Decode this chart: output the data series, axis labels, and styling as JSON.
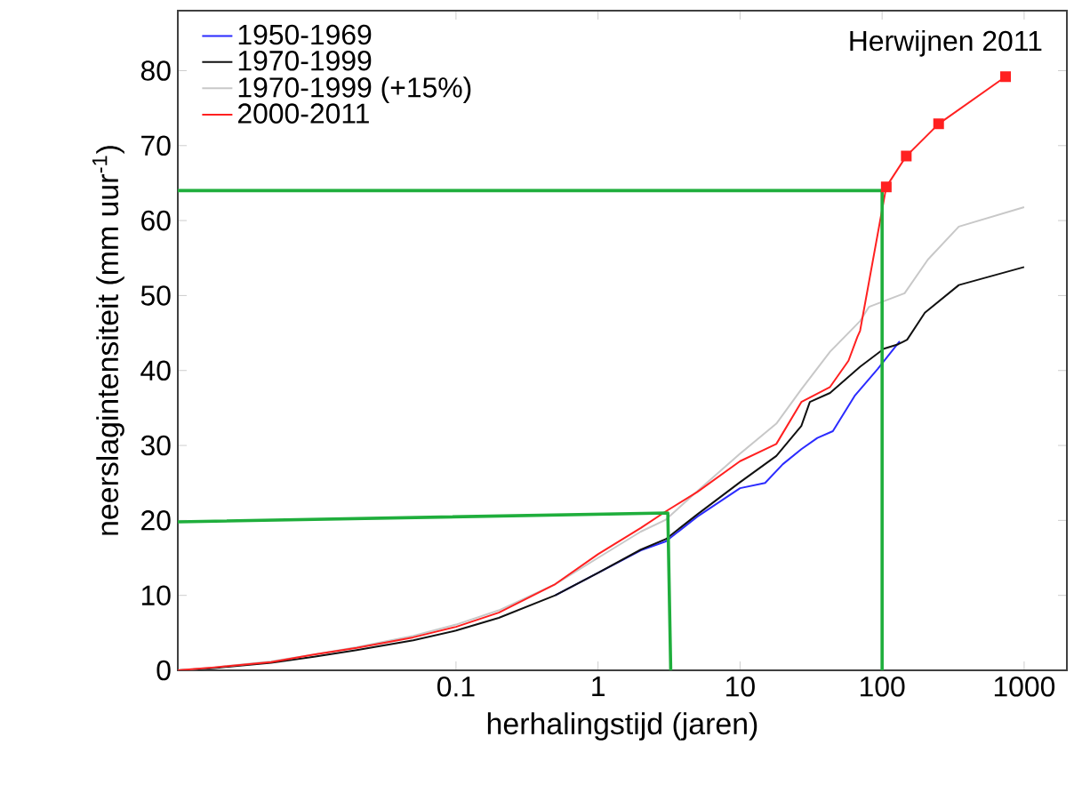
{
  "chart_data": {
    "type": "line",
    "title": "Herwijnen 2011",
    "xlabel": "herhalingstijd (jaren)",
    "ylabel": "neerslagintensiteit (mm uur$^{-1}$)",
    "log": "x",
    "legend": "top left",
    "xlim": [
      0.0011,
      2000
    ],
    "ylim": [
      0,
      88
    ],
    "xticks": [
      0.1,
      1,
      10,
      100,
      1000
    ],
    "yticks": [
      0,
      10,
      20,
      30,
      40,
      50,
      60,
      70,
      80
    ],
    "series": [
      {
        "name": "1950-1969",
        "color": "#2b2bff",
        "x": [
          0.5,
          1,
          2,
          3,
          5,
          10,
          15,
          20,
          27,
          35,
          45,
          64,
          93,
          133
        ],
        "values": [
          10.0,
          13.0,
          16.0,
          17.2,
          20.5,
          24.3,
          25.0,
          27.5,
          29.5,
          31.0,
          31.9,
          36.6,
          40.2,
          43.9
        ]
      },
      {
        "name": "1970-1999",
        "color": "#111111",
        "x": [
          0.0011,
          0.002,
          0.005,
          0.01,
          0.02,
          0.05,
          0.1,
          0.2,
          0.5,
          1,
          2,
          3,
          5,
          10,
          18,
          27,
          31,
          43,
          70,
          103,
          130,
          150,
          200,
          347,
          1000
        ],
        "values": [
          0,
          0.3,
          1.0,
          1.8,
          2.7,
          4.0,
          5.3,
          7.0,
          10.0,
          13.0,
          16.1,
          17.5,
          20.8,
          25.1,
          28.6,
          32.6,
          35.8,
          37.0,
          40.5,
          42.9,
          43.5,
          44.1,
          47.7,
          51.4,
          53.8
        ]
      },
      {
        "name": "1970-1999 (+15%)",
        "color": "#c8c8c8",
        "x": [
          0.0011,
          0.002,
          0.005,
          0.01,
          0.02,
          0.05,
          0.1,
          0.2,
          0.5,
          1,
          2,
          3,
          5,
          10,
          18,
          27,
          43,
          70,
          81,
          144,
          210,
          347,
          1000
        ],
        "values": [
          0,
          0.4,
          1.2,
          2.1,
          3.1,
          4.6,
          6.1,
          8.0,
          11.5,
          15.0,
          18.5,
          20.1,
          23.9,
          28.9,
          32.9,
          37.5,
          42.5,
          46.6,
          48.5,
          50.3,
          54.8,
          59.2,
          61.8
        ]
      },
      {
        "name": "2000-2011",
        "color": "#ff2020",
        "x": [
          0.0011,
          0.002,
          0.005,
          0.01,
          0.02,
          0.05,
          0.1,
          0.2,
          0.5,
          1,
          2,
          3,
          5,
          10,
          18,
          27,
          43,
          58,
          67,
          70,
          107,
          148,
          250,
          740
        ],
        "values": [
          0,
          0.4,
          1.1,
          2.1,
          3.0,
          4.4,
          5.8,
          7.7,
          11.5,
          15.5,
          19.0,
          21.2,
          23.8,
          27.9,
          30.2,
          35.8,
          37.8,
          41.3,
          44.5,
          45.3,
          64.5,
          68.6,
          72.9,
          79.2
        ]
      },
      {
        "type": "scatter",
        "marker": "square",
        "color": "#ff2020",
        "x": [
          107,
          148,
          250,
          740
        ],
        "values": [
          64.5,
          68.6,
          72.9,
          79.2
        ]
      },
      {
        "color": "#1fae3c",
        "x": [
          0.0011,
          100,
          100
        ],
        "values": [
          64,
          64,
          0
        ]
      },
      {
        "color": "#1fae3c",
        "x": [
          0.0011,
          3.1,
          3.25
        ],
        "values": [
          19.8,
          21.0,
          0
        ]
      }
    ]
  }
}
